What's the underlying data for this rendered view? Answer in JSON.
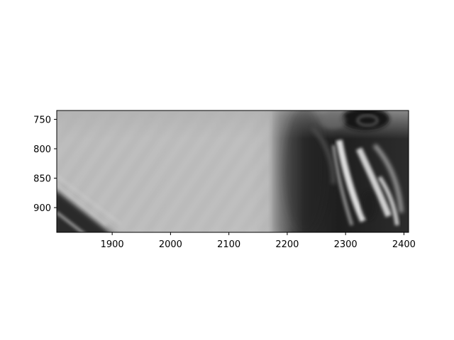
{
  "chart_data": {
    "type": "heatmap",
    "title": "",
    "xlabel": "",
    "ylabel": "",
    "colormap": "gray",
    "xlim": [
      1805,
      2408
    ],
    "ylim": [
      942,
      735
    ],
    "y_inverted": true,
    "xticks": [
      1900,
      2000,
      2100,
      2200,
      2300,
      2400
    ],
    "yticks": [
      750,
      800,
      850,
      900
    ],
    "grid": false,
    "legend": "none",
    "colors": {
      "frame": "#000000",
      "background": "#ffffff"
    }
  }
}
